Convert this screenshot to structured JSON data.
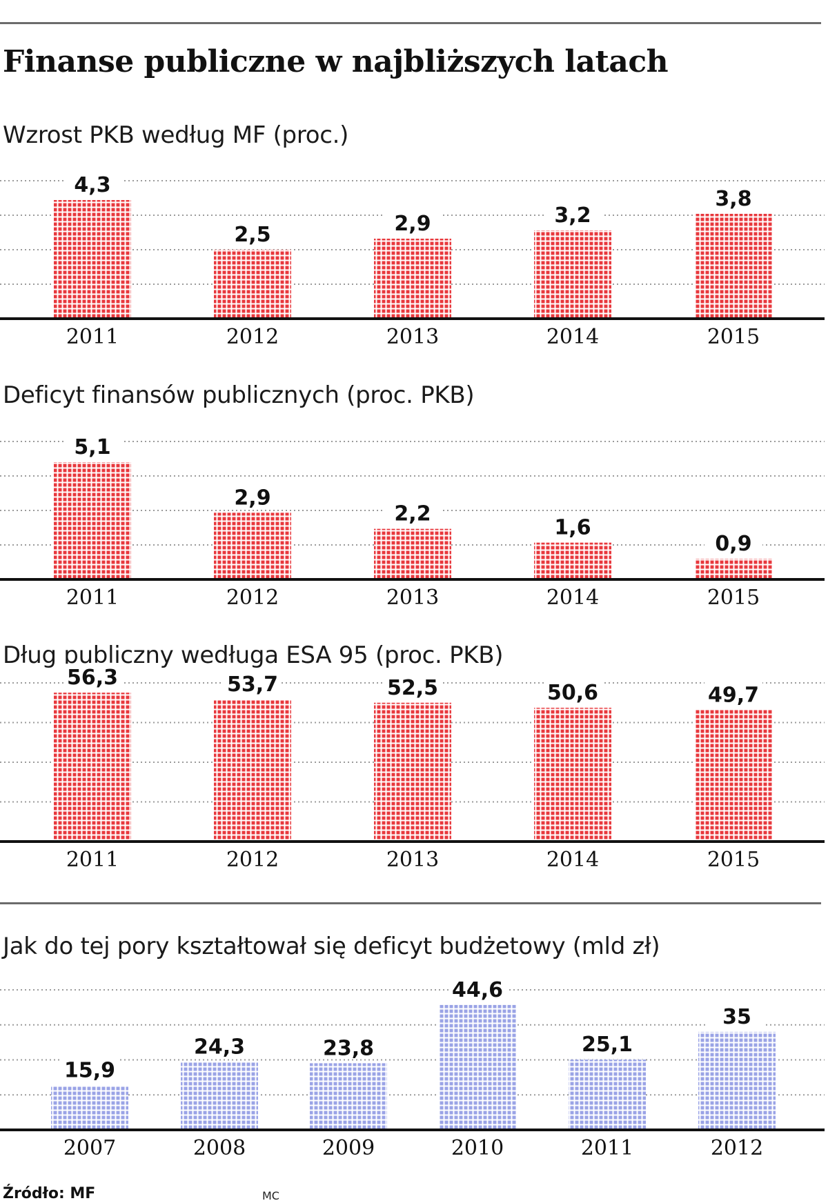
{
  "title": "Finanse publiczne w najbliższych latach",
  "source": "Źródło: MF",
  "credit": "MC",
  "colors": {
    "red": "#e8383d",
    "blue": "#9aa3e6",
    "axis": "#111111",
    "grid": "#9a9a9a"
  },
  "chart_data": [
    {
      "type": "bar",
      "title": "Wzrost PKB według MF (proc.)",
      "categories": [
        "2011",
        "2012",
        "2013",
        "2014",
        "2015"
      ],
      "values": [
        4.3,
        2.5,
        2.9,
        3.2,
        3.8
      ],
      "labels": [
        "4,3",
        "2,5",
        "2,9",
        "3,2",
        "3,8"
      ],
      "ylim": [
        0,
        5
      ],
      "grid": true,
      "color": "red"
    },
    {
      "type": "bar",
      "title": "Deficyt finansów publicznych (proc. PKB)",
      "categories": [
        "2011",
        "2012",
        "2013",
        "2014",
        "2015"
      ],
      "values": [
        5.1,
        2.9,
        2.2,
        1.6,
        0.9
      ],
      "labels": [
        "5,1",
        "2,9",
        "2,2",
        "1,6",
        "0,9"
      ],
      "ylim": [
        0,
        6
      ],
      "grid": true,
      "color": "red"
    },
    {
      "type": "bar",
      "title": "Dług publiczny wedługa ESA 95 (proc. PKB)",
      "categories": [
        "2011",
        "2012",
        "2013",
        "2014",
        "2015"
      ],
      "values": [
        56.3,
        53.7,
        52.5,
        50.6,
        49.7
      ],
      "labels": [
        "56,3",
        "53,7",
        "52,5",
        "50,6",
        "49,7"
      ],
      "ylim": [
        0,
        60
      ],
      "grid": true,
      "color": "red"
    },
    {
      "type": "bar",
      "title": "Jak do tej pory kształtował się deficyt budżetowy (mld zł)",
      "categories": [
        "2007",
        "2008",
        "2009",
        "2010",
        "2011",
        "2012"
      ],
      "values": [
        15.9,
        24.3,
        23.8,
        44.6,
        25.1,
        35
      ],
      "labels": [
        "15,9",
        "24,3",
        "23,8",
        "44,6",
        "25,1",
        "35"
      ],
      "ylim": [
        0,
        50
      ],
      "grid": true,
      "color": "blue"
    }
  ]
}
